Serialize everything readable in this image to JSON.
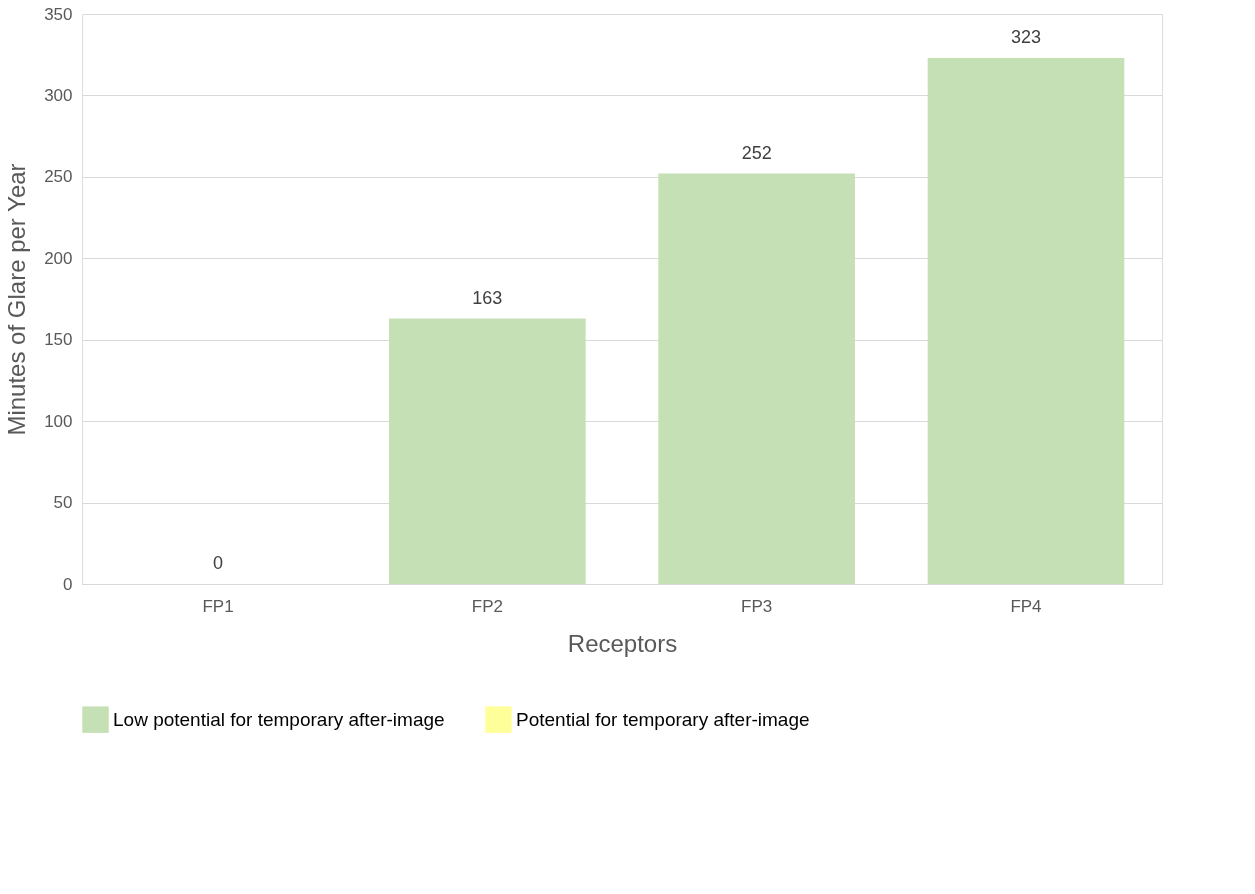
{
  "chart_data": {
    "type": "bar",
    "xlabel": "Receptors",
    "ylabel": "Minutes of Glare per Year",
    "categories": [
      "FP1",
      "FP2",
      "FP3",
      "FP4"
    ],
    "series": [
      {
        "name": "Low potential for temporary after-image",
        "color": "#c5e0b4",
        "values": [
          0,
          163,
          252,
          323
        ],
        "value_labels": [
          "0",
          "163",
          "252",
          "323"
        ]
      },
      {
        "name": "Potential for temporary after-image",
        "color": "#ffff99",
        "values": [
          0,
          0,
          0,
          0
        ]
      }
    ],
    "ylim": [
      0,
      350
    ],
    "yticks": [
      0,
      50,
      100,
      150,
      200,
      250,
      300,
      350
    ],
    "grid": "y",
    "legend": "bottom"
  }
}
